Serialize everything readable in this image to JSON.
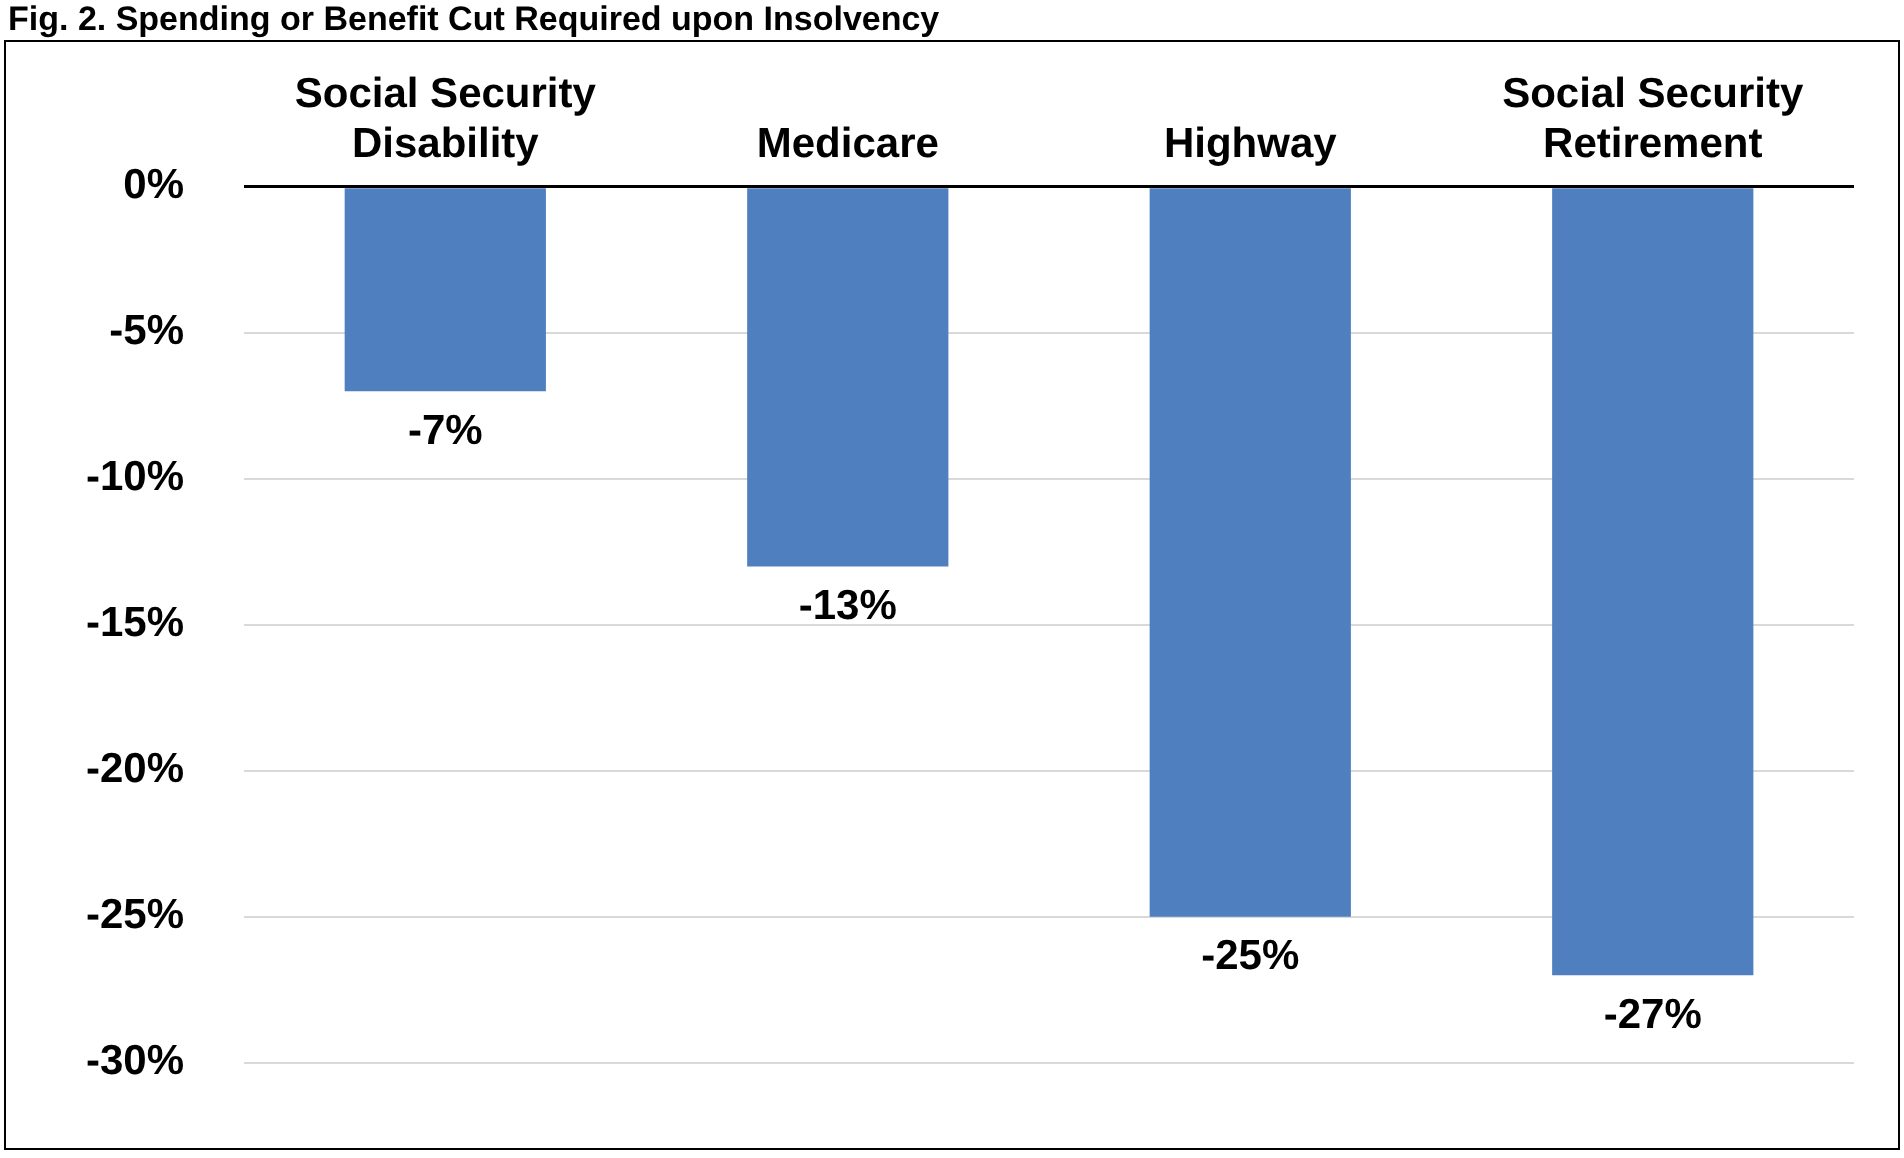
{
  "chart_data": {
    "type": "bar",
    "title": "Fig. 2. Spending or Benefit Cut Required upon Insolvency",
    "categories": [
      [
        "Social Security",
        "Disability"
      ],
      [
        "Medicare"
      ],
      [
        "Highway"
      ],
      [
        "Social Security",
        "Retirement"
      ]
    ],
    "values": [
      -7,
      -13,
      -25,
      -27
    ],
    "value_labels": [
      "-7%",
      "-13%",
      "-25%",
      "-27%"
    ],
    "color": "#4f7fbf",
    "ylim": [
      -30,
      0
    ],
    "yticks": [
      {
        "value": 0,
        "label": "0%"
      },
      {
        "value": -5,
        "label": "-5%"
      },
      {
        "value": -10,
        "label": "-10%"
      },
      {
        "value": -15,
        "label": "-15%"
      },
      {
        "value": -20,
        "label": "-20%"
      },
      {
        "value": -25,
        "label": "-25%"
      },
      {
        "value": -30,
        "label": "-30%"
      }
    ],
    "grid": "y",
    "legend": false
  }
}
